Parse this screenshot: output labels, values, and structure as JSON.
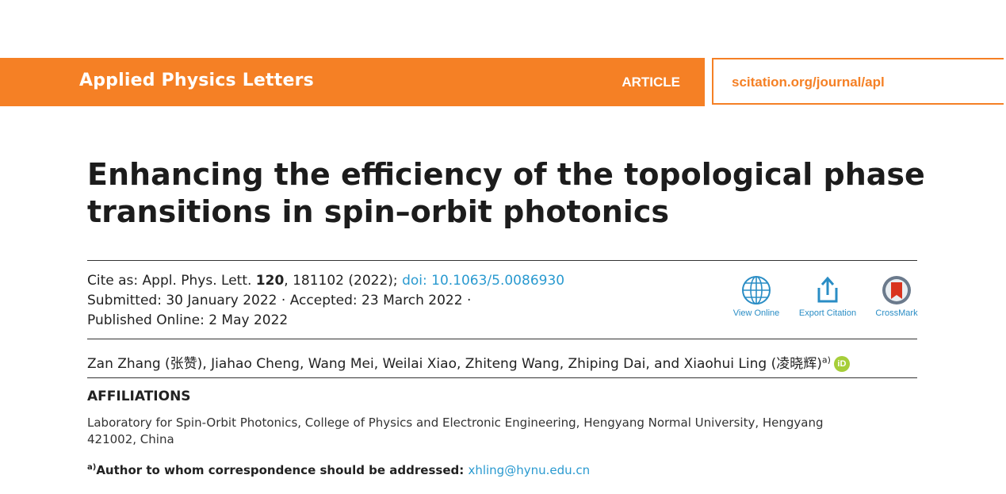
{
  "header": {
    "journal": "Applied Physics Letters",
    "article_label": "ARTICLE",
    "url": "scitation.org/journal/apl"
  },
  "title": "Enhancing the efficiency of the topological phase transitions in spin–orbit photonics",
  "citation": {
    "cite_prefix": "Cite as: Appl. Phys. Lett. ",
    "volume": "120",
    "pages_year": ", 181102 (2022); ",
    "doi": "doi: 10.1063/5.0086930",
    "submitted": "Submitted: 30 January 2022 · Accepted: 23 March 2022 ·",
    "published": "Published Online: 2 May 2022"
  },
  "tools": {
    "view_online": "View Online",
    "export_citation": "Export Citation",
    "crossmark": "CrossMark"
  },
  "authors": {
    "list": "Zan Zhang (张赞), Jiahao Cheng, Wang Mei, Weilai Xiao, Zhiteng Wang, Zhiping Dai, and Xiaohui Ling (凌晓辉)",
    "footnote_mark": "a)",
    "orcid": "iD"
  },
  "affiliations": {
    "heading": "AFFILIATIONS",
    "text": "Laboratory for Spin-Orbit Photonics, College of Physics and Electronic Engineering, Hengyang Normal University, Hengyang 421002, China"
  },
  "correspondence": {
    "mark": "a)",
    "label": "Author to whom correspondence should be addressed: ",
    "email": "xhling@hynu.edu.cn"
  },
  "colors": {
    "accent": "#f58025",
    "link": "#2a9ad0",
    "orcid": "#a6ce39"
  }
}
